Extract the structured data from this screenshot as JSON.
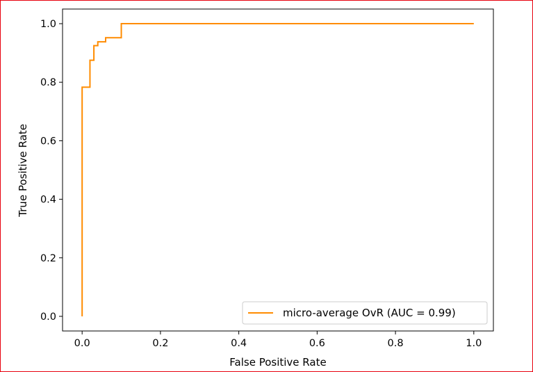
{
  "colors": {
    "frame_border": "#e8000d",
    "series_line": "#ff8c00",
    "axes": "#000000",
    "legend_border": "#cccccc"
  },
  "chart_data": {
    "type": "line",
    "title": "",
    "xlabel": "False Positive Rate",
    "ylabel": "True Positive Rate",
    "xlim": [
      -0.05,
      1.05
    ],
    "ylim": [
      -0.05,
      1.05
    ],
    "grid": false,
    "legend_position": "lower-right",
    "x_ticks": [
      0.0,
      0.2,
      0.4,
      0.6,
      0.8,
      1.0
    ],
    "x_tick_labels": [
      "0.0",
      "0.2",
      "0.4",
      "0.6",
      "0.8",
      "1.0"
    ],
    "y_ticks": [
      0.0,
      0.2,
      0.4,
      0.6,
      0.8,
      1.0
    ],
    "y_tick_labels": [
      "0.0",
      "0.2",
      "0.4",
      "0.6",
      "0.8",
      "1.0"
    ],
    "series": [
      {
        "name": "micro-average OvR (AUC = 0.99)",
        "color": "#ff8c00",
        "x": [
          0.0,
          0.0,
          0.02,
          0.02,
          0.03,
          0.03,
          0.04,
          0.04,
          0.06,
          0.06,
          0.1,
          0.1,
          1.0
        ],
        "y": [
          0.0,
          0.783,
          0.783,
          0.875,
          0.875,
          0.925,
          0.925,
          0.938,
          0.938,
          0.952,
          0.952,
          1.0,
          1.0
        ]
      }
    ]
  }
}
